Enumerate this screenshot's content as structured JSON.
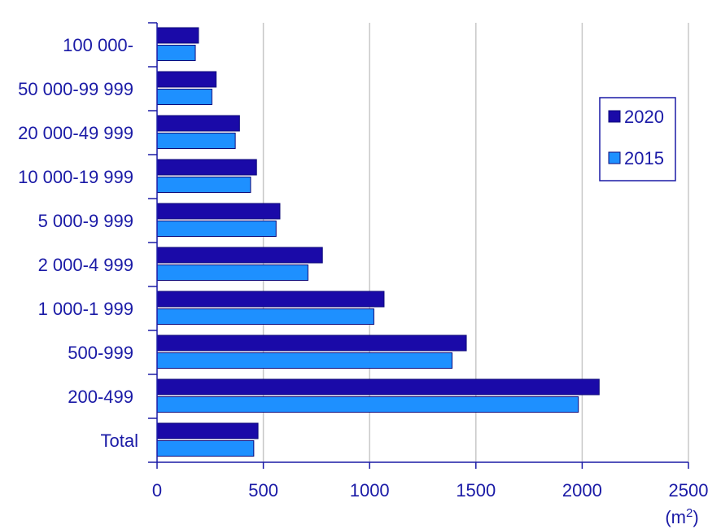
{
  "chart_data": {
    "type": "bar",
    "orientation": "horizontal",
    "categories": [
      "100 000-",
      "50 000-99 999",
      "20 000-49 999",
      "10 000-19 999",
      "5 000-9 999",
      "2 000-4 999",
      "1 000-1 999",
      "500-999",
      "200-499",
      "Total"
    ],
    "series": [
      {
        "name": "2020",
        "color": "#1a0aa8",
        "values": [
          195,
          278,
          388,
          468,
          578,
          778,
          1068,
          1455,
          2080,
          475
        ]
      },
      {
        "name": "2015",
        "color": "#1e90ff",
        "values": [
          180,
          258,
          368,
          440,
          560,
          710,
          1020,
          1388,
          1982,
          455
        ]
      }
    ],
    "xlim": [
      0,
      2500
    ],
    "xticks": [
      "0",
      "500",
      "1000",
      "1500",
      "2000",
      "2500"
    ],
    "unit": {
      "base": "(m",
      "sup": "2",
      "close": ")"
    },
    "grid": "vertical",
    "legend_position": "top-right"
  }
}
